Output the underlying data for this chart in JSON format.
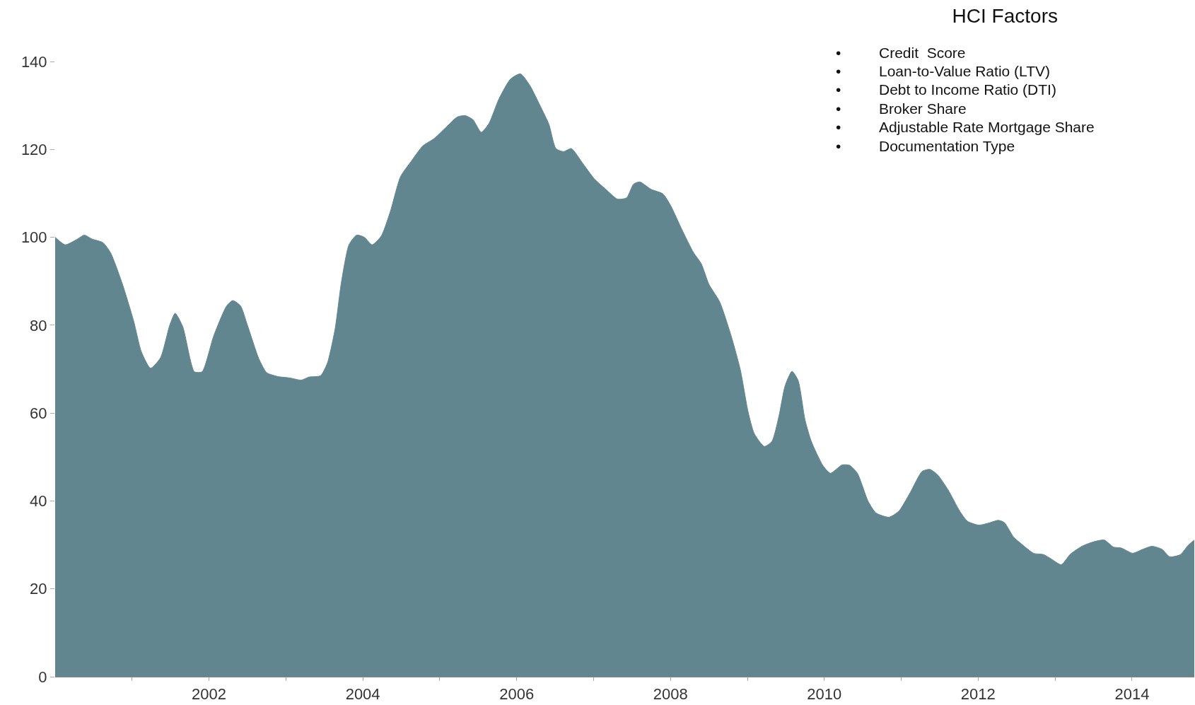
{
  "chart_data": {
    "type": "area",
    "title": "HCI Factors",
    "annotations": [
      "• Credit  Score",
      "• Loan-to-Value Ratio (LTV)",
      "• Debt to Income Ratio (DTI)",
      "• Broker Share",
      "• Adjustable Rate Mortgage Share",
      "• Documentation Type"
    ],
    "x": [
      2000.0,
      2000.13,
      2000.28,
      2000.38,
      2000.48,
      2000.62,
      2000.72,
      2000.87,
      2001.02,
      2001.12,
      2001.24,
      2001.37,
      2001.49,
      2001.56,
      2001.66,
      2001.81,
      2001.91,
      2002.06,
      2002.23,
      2002.31,
      2002.41,
      2002.5,
      2002.65,
      2002.75,
      2002.9,
      2003.05,
      2003.2,
      2003.3,
      2003.45,
      2003.54,
      2003.64,
      2003.72,
      2003.82,
      2003.92,
      2004.02,
      2004.12,
      2004.24,
      2004.36,
      2004.49,
      2004.63,
      2004.78,
      2004.93,
      2005.08,
      2005.23,
      2005.33,
      2005.43,
      2005.54,
      2005.64,
      2005.77,
      2005.92,
      2006.05,
      2006.17,
      2006.32,
      2006.42,
      2006.51,
      2006.61,
      2006.71,
      2006.86,
      2007.01,
      2007.16,
      2007.31,
      2007.43,
      2007.52,
      2007.6,
      2007.75,
      2007.9,
      2008.0,
      2008.15,
      2008.3,
      2008.4,
      2008.5,
      2008.64,
      2008.79,
      2008.91,
      2009.01,
      2009.09,
      2009.22,
      2009.32,
      2009.41,
      2009.49,
      2009.58,
      2009.66,
      2009.75,
      2009.83,
      2009.98,
      2010.08,
      2010.23,
      2010.33,
      2010.43,
      2010.57,
      2010.67,
      2010.84,
      2010.97,
      2011.12,
      2011.27,
      2011.37,
      2011.47,
      2011.61,
      2011.76,
      2011.86,
      2012.01,
      2012.16,
      2012.26,
      2012.34,
      2012.46,
      2012.55,
      2012.72,
      2012.85,
      2012.95,
      2013.08,
      2013.2,
      2013.35,
      2013.5,
      2013.64,
      2013.76,
      2013.86,
      2014.01,
      2014.14,
      2014.26,
      2014.39,
      2014.49,
      2014.63,
      2014.73,
      2014.81
    ],
    "series": [
      {
        "color": "#62868f",
        "values": [
          100,
          98.3,
          99.5,
          100.5,
          99.6,
          98.8,
          96.5,
          89.6,
          81,
          74,
          70.2,
          72.6,
          80,
          82.7,
          79.6,
          69.4,
          69.4,
          77.5,
          84.4,
          85.6,
          84.4,
          80,
          72.3,
          69.2,
          68.3,
          68,
          67.5,
          68.2,
          68.5,
          71.4,
          79.2,
          89.6,
          98.3,
          100.5,
          100,
          98.3,
          100.3,
          106,
          113.8,
          117.3,
          120.8,
          122.5,
          125,
          127.4,
          127.7,
          126.8,
          123.9,
          125.9,
          131.5,
          136,
          137.2,
          134.6,
          129.4,
          125.7,
          120.2,
          119.5,
          120.2,
          116.8,
          113.3,
          110.9,
          108.7,
          109,
          112.1,
          112.6,
          110.9,
          109.9,
          107.3,
          101.7,
          96.5,
          94,
          89.3,
          85.3,
          77.5,
          69.7,
          60.2,
          55.3,
          52.4,
          53.6,
          59.3,
          66.2,
          69.5,
          67.4,
          58.4,
          53.6,
          48.1,
          46.3,
          48.2,
          48.1,
          46.3,
          39.9,
          37.3,
          36.3,
          37.7,
          42,
          46.7,
          47.2,
          46,
          42.5,
          37.7,
          35.4,
          34.5,
          35.1,
          35.6,
          35.1,
          31.8,
          30.4,
          28.1,
          27.8,
          26.8,
          25.5,
          27.9,
          29.7,
          30.7,
          31.1,
          29.5,
          29.3,
          28.1,
          29,
          29.7,
          29,
          27.3,
          27.8,
          29.9,
          31.1
        ]
      }
    ],
    "xlim": [
      2000,
      2014.81
    ],
    "xticks": [
      {
        "value": 2001,
        "label": null
      },
      2002,
      {
        "value": 2003,
        "label": null
      },
      2004,
      {
        "value": 2005,
        "label": null
      },
      2006,
      {
        "value": 2007,
        "label": null
      },
      2008,
      {
        "value": 2009,
        "label": null
      },
      2010,
      {
        "value": 2011,
        "label": null
      },
      2012,
      {
        "value": 2013,
        "label": null
      },
      2014
    ],
    "ylim": [
      0,
      154
    ],
    "yticks": [
      0,
      20,
      40,
      60,
      80,
      100,
      120,
      140
    ],
    "grid": false
  }
}
